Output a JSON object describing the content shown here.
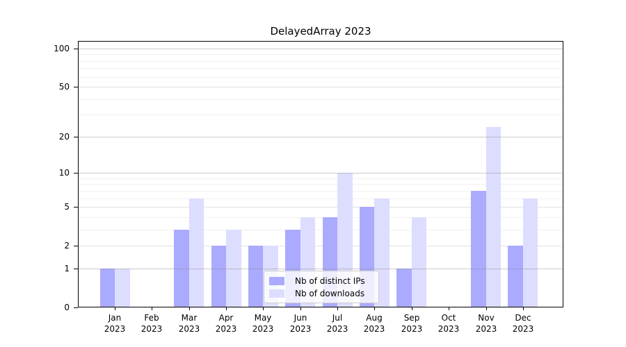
{
  "chart_data": {
    "type": "bar",
    "title": "DelayedArray 2023",
    "categories": [
      {
        "month": "Jan",
        "year": "2023"
      },
      {
        "month": "Feb",
        "year": "2023"
      },
      {
        "month": "Mar",
        "year": "2023"
      },
      {
        "month": "Apr",
        "year": "2023"
      },
      {
        "month": "May",
        "year": "2023"
      },
      {
        "month": "Jun",
        "year": "2023"
      },
      {
        "month": "Jul",
        "year": "2023"
      },
      {
        "month": "Aug",
        "year": "2023"
      },
      {
        "month": "Sep",
        "year": "2023"
      },
      {
        "month": "Oct",
        "year": "2023"
      },
      {
        "month": "Nov",
        "year": "2023"
      },
      {
        "month": "Dec",
        "year": "2023"
      }
    ],
    "series": [
      {
        "name": "Nb of distinct IPs",
        "key": "distinct-ips",
        "color": "#aaaaff",
        "values": [
          1,
          0,
          3,
          2,
          2,
          3,
          4,
          5,
          1,
          0,
          7,
          2
        ]
      },
      {
        "name": "Nb of downloads",
        "key": "downloads",
        "color": "#ddddff",
        "values": [
          1,
          0,
          6,
          3,
          2,
          4,
          10,
          6,
          4,
          0,
          24,
          6
        ]
      }
    ],
    "xlabel": "",
    "ylabel": "",
    "yscale": "log1p",
    "ylim": [
      0,
      115
    ],
    "yticks": [
      0,
      1,
      2,
      5,
      10,
      20,
      50,
      100
    ],
    "grid": {
      "strong": [
        1,
        10,
        20,
        100
      ],
      "medium": [
        2,
        5,
        50
      ],
      "minor": [
        3,
        4,
        6,
        7,
        8,
        9,
        30,
        40,
        60,
        70,
        80,
        90
      ]
    },
    "grid_colors": {
      "strong": "rgba(140,140,140,0.45)",
      "medium": "#e2e2e2",
      "minor": "#f0f0f0"
    },
    "legend_position": "inside lower center",
    "axis_color": "#000000"
  }
}
